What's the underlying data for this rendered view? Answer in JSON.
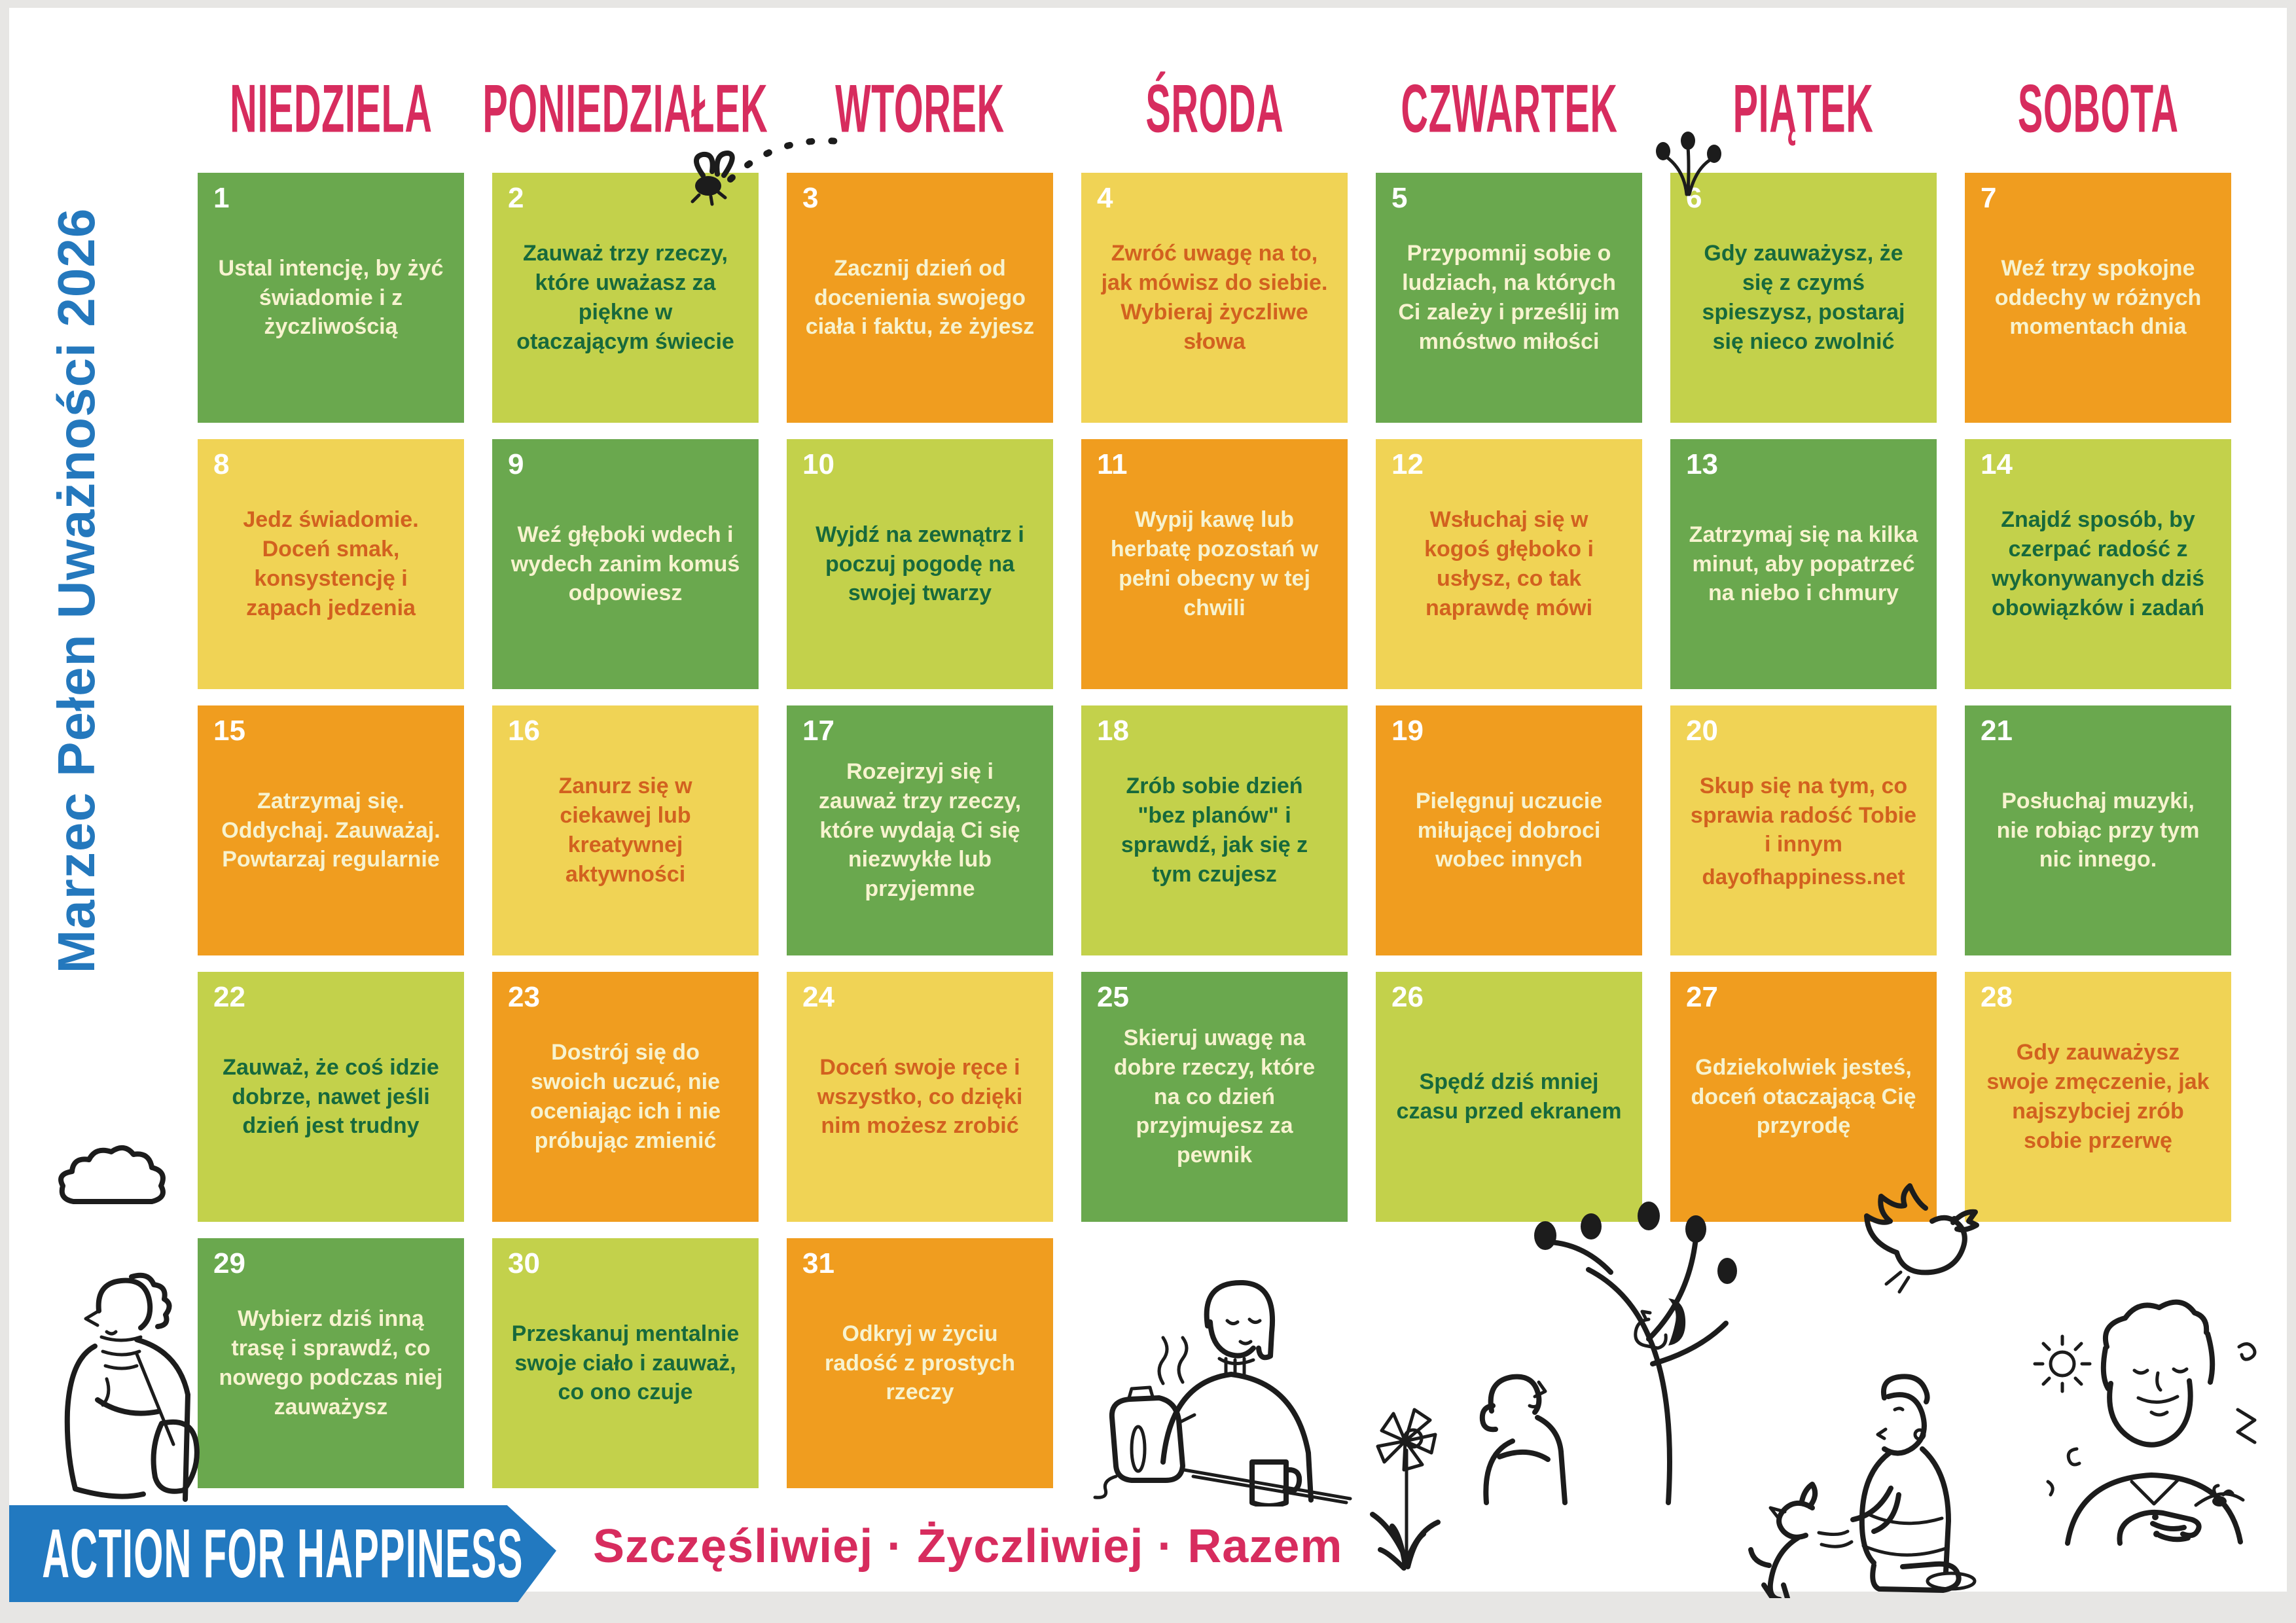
{
  "title": "Marzec Pełen Uważności 2026",
  "weekdays": [
    "NIEDZIELA",
    "PONIEDZIAŁEK",
    "WTOREK",
    "ŚRODA",
    "CZWARTEK",
    "PIĄTEK",
    "SOBOTA"
  ],
  "footer": {
    "brand": "ACTION FOR HAPPINESS",
    "tagline": "Szczęśliwiej · Życzliwiej · Razem"
  },
  "colors": {
    "green": "#6aa84e",
    "light_green": "#c3d14b",
    "yellow": "#f0d355",
    "orange": "#f09d1f",
    "cream_text": "#f7f3cf",
    "dark_green_text": "#17693c",
    "orange_text": "#d2611f",
    "pink": "#d72c5e",
    "blue": "#2279c0"
  },
  "text_color_map": {
    "green": "cream_text",
    "light_green": "dark_green_text",
    "orange": "cream_text",
    "yellow": "orange_text"
  },
  "days": [
    {
      "num": "1",
      "color": "green",
      "text": "Ustal intencję, by żyć świadomie i z życzliwością"
    },
    {
      "num": "2",
      "color": "light_green",
      "text": "Zauważ trzy rzeczy, które uważasz za piękne w otaczającym świecie"
    },
    {
      "num": "3",
      "color": "orange",
      "text": "Zacznij dzień od docenienia swojego ciała i faktu, że żyjesz"
    },
    {
      "num": "4",
      "color": "yellow",
      "text": "Zwróć uwagę na to, jak mówisz do siebie. Wybieraj życzliwe słowa"
    },
    {
      "num": "5",
      "color": "green",
      "text": "Przypomnij sobie o ludziach, na których Ci zależy i prześlij im mnóstwo miłości"
    },
    {
      "num": "6",
      "color": "light_green",
      "text": "Gdy zauważysz, że się z czymś spieszysz, postaraj się nieco zwolnić"
    },
    {
      "num": "7",
      "color": "orange",
      "text": "Weź trzy spokojne oddechy w różnych momentach dnia"
    },
    {
      "num": "8",
      "color": "yellow",
      "text": "Jedz świadomie. Doceń smak, konsystencję i zapach jedzenia"
    },
    {
      "num": "9",
      "color": "green",
      "text": "Weź głęboki wdech i wydech zanim komuś odpowiesz"
    },
    {
      "num": "10",
      "color": "light_green",
      "text": "Wyjdź na zewnątrz i poczuj pogodę na swojej twarzy"
    },
    {
      "num": "11",
      "color": "orange",
      "text": "Wypij kawę lub herbatę pozostań w pełni obecny w tej chwili"
    },
    {
      "num": "12",
      "color": "yellow",
      "text": "Wsłuchaj się w kogoś głęboko i usłysz, co tak naprawdę mówi"
    },
    {
      "num": "13",
      "color": "green",
      "text": "Zatrzymaj się na kilka minut, aby popatrzeć na niebo i chmury"
    },
    {
      "num": "14",
      "color": "light_green",
      "text": "Znajdź sposób, by czerpać radość z wykonywanych dziś obowiązków i zadań"
    },
    {
      "num": "15",
      "color": "orange",
      "text": "Zatrzymaj się. Oddychaj. Zauważaj. Powtarzaj regularnie"
    },
    {
      "num": "16",
      "color": "yellow",
      "text": "Zanurz się w ciekawej lub kreatywnej aktywności"
    },
    {
      "num": "17",
      "color": "green",
      "text": "Rozejrzyj się i zauważ trzy rzeczy, które wydają Ci się niezwykłe lub przyjemne"
    },
    {
      "num": "18",
      "color": "light_green",
      "text": "Zrób sobie dzień \"bez planów\" i sprawdź, jak się z tym czujesz"
    },
    {
      "num": "19",
      "color": "orange",
      "text": "Pielęgnuj uczucie miłującej dobroci wobec innych"
    },
    {
      "num": "20",
      "color": "yellow",
      "text": "Skup się na tym, co sprawia radość Tobie i innym",
      "link": "dayofhappiness.net"
    },
    {
      "num": "21",
      "color": "green",
      "text": "Posłuchaj muzyki, nie robiąc przy tym nic innego."
    },
    {
      "num": "22",
      "color": "light_green",
      "text": "Zauważ, że coś idzie dobrze, nawet jeśli dzień jest trudny"
    },
    {
      "num": "23",
      "color": "orange",
      "text": "Dostrój się do swoich uczuć, nie oceniając ich i nie próbując zmienić"
    },
    {
      "num": "24",
      "color": "yellow",
      "text": "Doceń swoje ręce i wszystko, co dzięki nim możesz zrobić"
    },
    {
      "num": "25",
      "color": "green",
      "text": "Skieruj uwagę na dobre rzeczy, które na co dzień przyjmujesz za pewnik"
    },
    {
      "num": "26",
      "color": "light_green",
      "text": "Spędź dziś mniej czasu przed ekranem"
    },
    {
      "num": "27",
      "color": "orange",
      "text": "Gdziekolwiek jesteś, doceń otaczającą Cię przyrodę"
    },
    {
      "num": "28",
      "color": "yellow",
      "text": "Gdy zauważysz swoje zmęczenie, jak najszybciej zrób sobie przerwę"
    },
    {
      "num": "29",
      "color": "green",
      "text": "Wybierz dziś inną trasę i sprawdź, co nowego podczas niej zauważysz"
    },
    {
      "num": "30",
      "color": "light_green",
      "text": "Przeskanuj mentalnie swoje ciało i zauważ, co ono czuje"
    },
    {
      "num": "31",
      "color": "orange",
      "text": "Odkryj w życiu radość z prostych rzeczy"
    }
  ],
  "illustrations": [
    "fly",
    "sprout-buds",
    "cloud",
    "person-with-scarf",
    "woman-with-kettle-and-mug",
    "tree-with-squirrel-and-child",
    "daffodil",
    "person-petting-dog",
    "flying-bird",
    "bearded-man-hand-on-chest"
  ]
}
